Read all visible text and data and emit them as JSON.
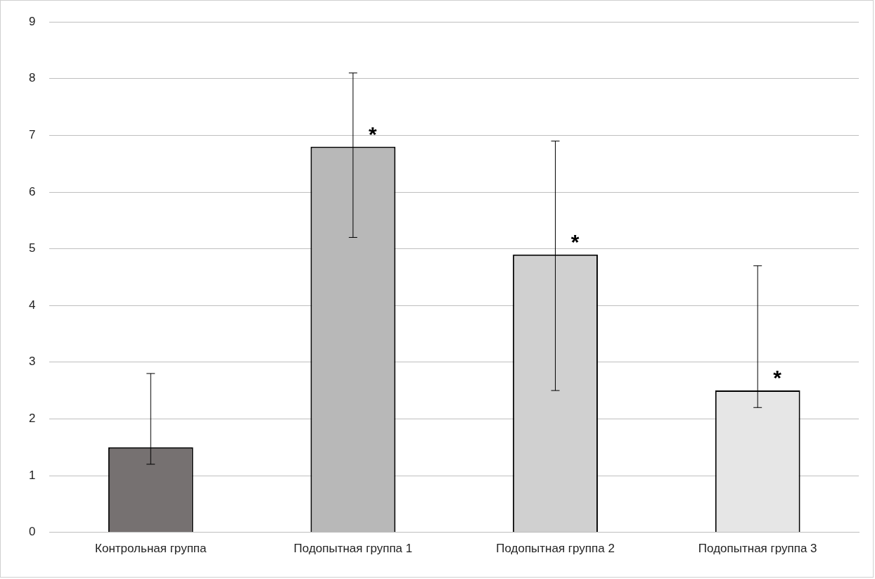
{
  "chart_data": {
    "type": "bar",
    "categories": [
      "Контрольная группа",
      "Подопытная группа 1",
      "Подопытная группа 2",
      "Подопытная группа 3"
    ],
    "values": [
      1.5,
      6.8,
      4.9,
      2.5
    ],
    "colors": [
      "#767171",
      "#b8b8b8",
      "#d0d0d0",
      "#e6e6e6"
    ],
    "errors": [
      [
        1.2,
        2.8
      ],
      [
        5.2,
        8.1
      ],
      [
        2.5,
        6.9
      ],
      [
        2.2,
        4.7
      ]
    ],
    "ylim": [
      0,
      9
    ],
    "yticks": [
      0,
      1,
      2,
      3,
      4,
      5,
      6,
      7,
      8,
      9
    ],
    "grid": "y",
    "legend": false,
    "annotations": [
      {
        "text": "*",
        "x": "Подопытная группа 1",
        "y": 7.1
      },
      {
        "text": "*",
        "x": "Подопытная группа 2",
        "y": 5.2
      },
      {
        "text": "*",
        "x": "Подопытная группа 3",
        "y": 2.8
      }
    ]
  }
}
